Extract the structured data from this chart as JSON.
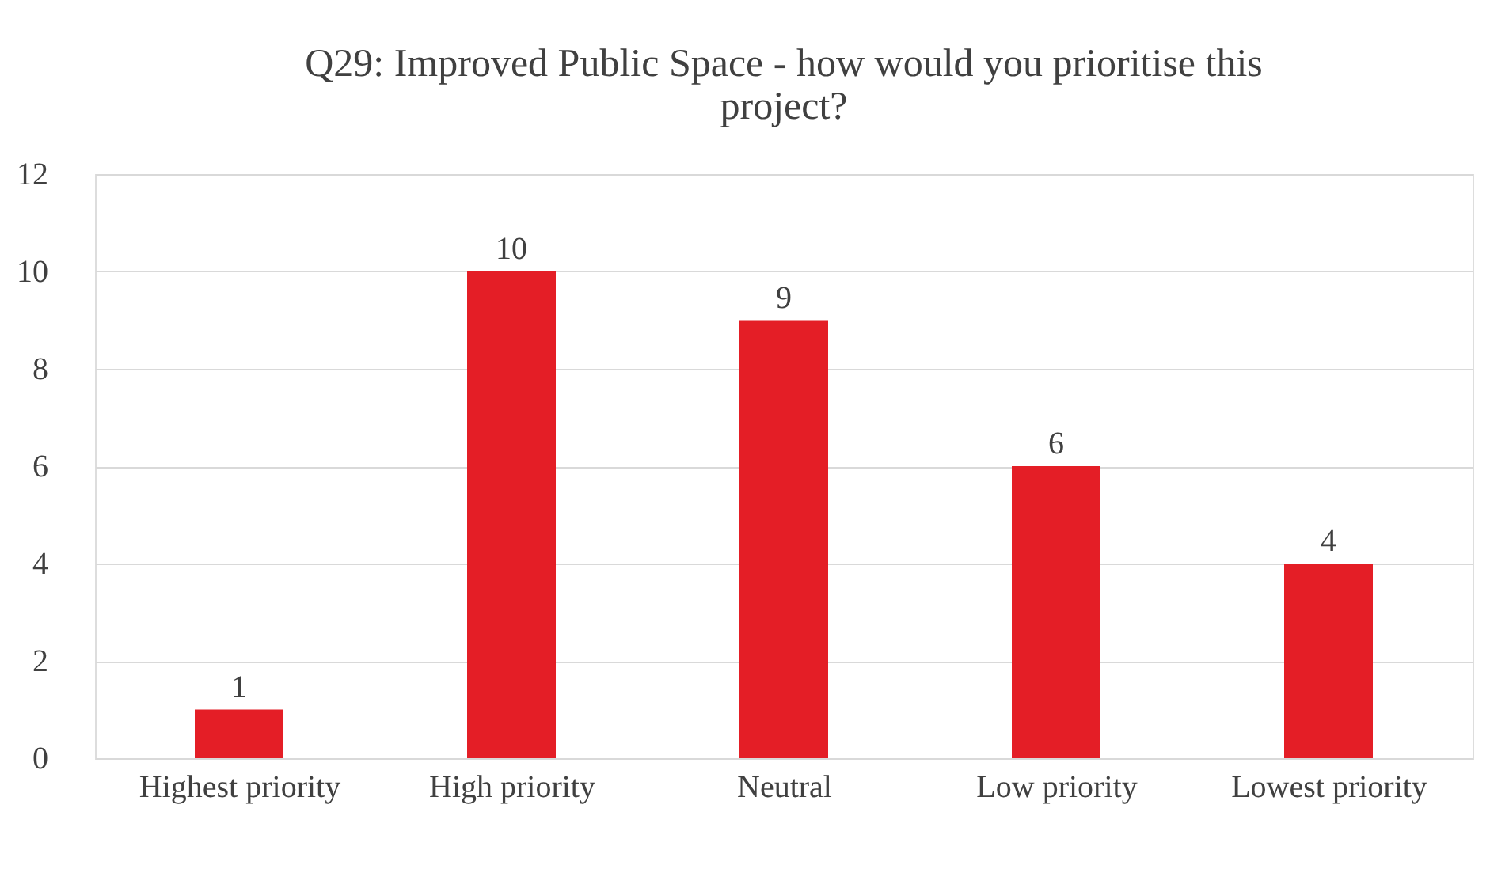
{
  "chart_data": {
    "type": "bar",
    "title": "Q29: Improved Public Space - how would you prioritise this project?",
    "categories": [
      "Highest priority",
      "High priority",
      "Neutral",
      "Low priority",
      "Lowest priority"
    ],
    "values": [
      1,
      10,
      9,
      6,
      4
    ],
    "color": "#e41e26",
    "ylim": [
      0,
      12
    ],
    "yticks": [
      0,
      2,
      4,
      6,
      8,
      10,
      12
    ],
    "grid": "y",
    "data_labels": true
  }
}
